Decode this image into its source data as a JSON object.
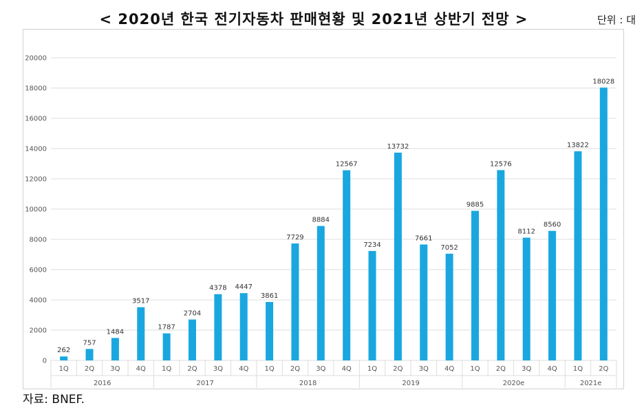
{
  "title": "< 2020년 한국 전기자동차 판매현황 및 2021년 상반기 전망 >",
  "unit": "단위 : 대",
  "source": "자료: BNEF.",
  "colors": {
    "bar": "#1aa7e0",
    "grid": "#dcdcdc",
    "axis_text": "#555555",
    "label_text": "#333333"
  },
  "chart_data": {
    "type": "bar",
    "title": "2020년 한국 전기자동차 판매현황 및 2021년 상반기 전망",
    "ylabel": "대",
    "ylim": [
      0,
      20000
    ],
    "yticks": [
      0,
      2000,
      4000,
      6000,
      8000,
      10000,
      12000,
      14000,
      16000,
      18000,
      20000
    ],
    "grid": true,
    "groups": [
      {
        "label": "2016",
        "categories": [
          "1Q",
          "2Q",
          "3Q",
          "4Q"
        ],
        "values": [
          262,
          757,
          1484,
          3517
        ]
      },
      {
        "label": "2017",
        "categories": [
          "1Q",
          "2Q",
          "3Q",
          "4Q"
        ],
        "values": [
          1787,
          2704,
          4378,
          4447
        ]
      },
      {
        "label": "2018",
        "categories": [
          "1Q",
          "2Q",
          "3Q",
          "4Q"
        ],
        "values": [
          3861,
          7729,
          8884,
          12567
        ]
      },
      {
        "label": "2019",
        "categories": [
          "1Q",
          "2Q",
          "3Q",
          "4Q"
        ],
        "values": [
          7234,
          13732,
          7661,
          7052
        ]
      },
      {
        "label": "2020e",
        "categories": [
          "1Q",
          "2Q",
          "3Q",
          "4Q"
        ],
        "values": [
          9885,
          12576,
          8112,
          8560
        ]
      },
      {
        "label": "2021e",
        "categories": [
          "1Q",
          "2Q"
        ],
        "values": [
          13822,
          18028
        ]
      }
    ]
  }
}
